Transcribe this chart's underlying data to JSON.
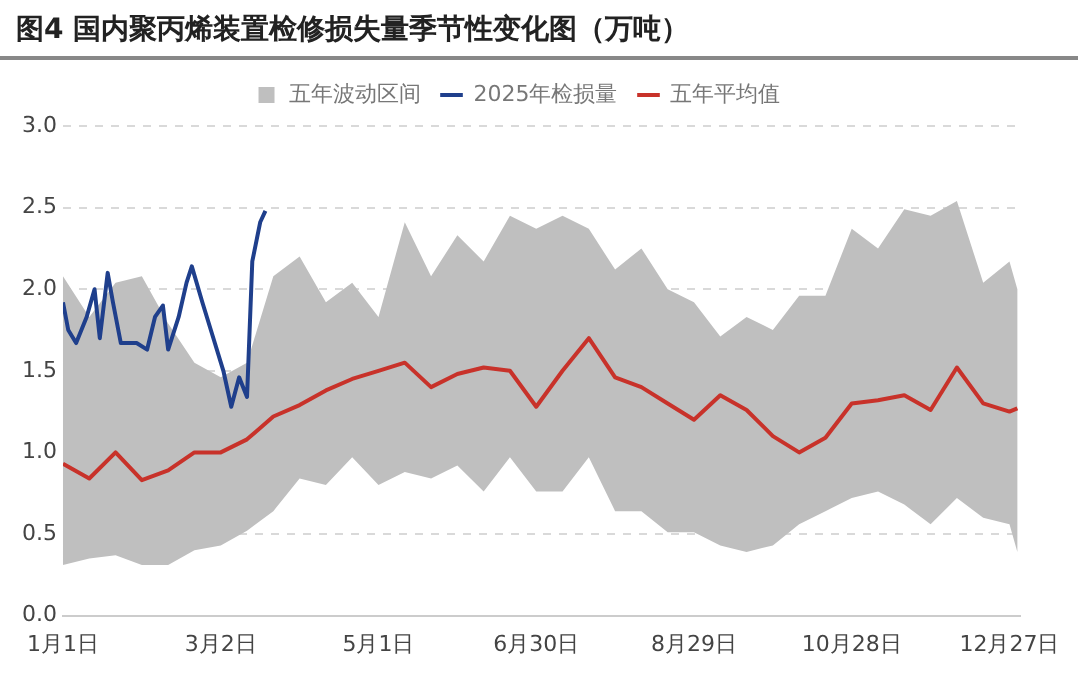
{
  "chart_data": {
    "type": "line",
    "title": "图4 国内聚丙烯装置检修损失量季节性变化图（万吨）",
    "xlim": [
      "--01-01",
      "--12-31"
    ],
    "xticks": [
      {
        "value": "--01-01",
        "label": "1月1日"
      },
      {
        "value": "--03-02",
        "label": "3月2日"
      },
      {
        "value": "--05-01",
        "label": "5月1日"
      },
      {
        "value": "--06-30",
        "label": "6月30日"
      },
      {
        "value": "--08-29",
        "label": "8月29日"
      },
      {
        "value": "--10-28",
        "label": "10月28日"
      },
      {
        "value": "--12-27",
        "label": "12月27日"
      }
    ],
    "ylim": [
      0,
      3
    ],
    "yticks": [
      {
        "value": 0,
        "label": "0.0"
      },
      0.5,
      {
        "value": 1,
        "label": "1.0"
      },
      1.5,
      {
        "value": 2,
        "label": "2.0"
      },
      2.5,
      {
        "value": 3,
        "label": "3.0"
      }
    ],
    "grid": "y",
    "legend": "top",
    "series": [
      {
        "name": "五年波动区间",
        "type": "area",
        "color": "#bfbfbf"
      },
      {
        "name": "2025年检损量",
        "type": "line",
        "color": "#1f3f8c",
        "x": [
          "--01-01",
          "--01-03",
          "--01-06",
          "--01-10",
          "--01-13",
          "--01-15",
          "--01-18",
          "--01-20",
          "--01-23",
          "--01-29",
          "--02-02",
          "--02-05",
          "--02-08",
          "--02-10",
          "--02-14",
          "--02-17",
          "--02-19",
          "--02-23",
          "--02-27",
          "--03-03",
          "--03-06",
          "--03-09",
          "--03-12",
          "--03-14",
          "--03-17",
          "--03-19"
        ],
        "values": [
          1.92,
          1.75,
          1.67,
          1.83,
          2.0,
          1.7,
          2.1,
          1.92,
          1.67,
          1.67,
          1.63,
          1.83,
          1.9,
          1.63,
          1.83,
          2.04,
          2.14,
          1.92,
          1.71,
          1.5,
          1.28,
          1.46,
          1.34,
          2.17,
          2.41,
          2.48
        ]
      },
      {
        "name": "五年平均值",
        "type": "line",
        "color": "#c8322a",
        "x": [
          "--01-01",
          "--01-11",
          "--01-21",
          "--01-31",
          "--02-10",
          "--02-20",
          "--03-02",
          "--03-12",
          "--03-22",
          "--04-01",
          "--04-11",
          "--04-21",
          "--05-01",
          "--05-11",
          "--05-21",
          "--05-31",
          "--06-10",
          "--06-20",
          "--06-30",
          "--07-10",
          "--07-20",
          "--07-30",
          "--08-09",
          "--08-19",
          "--08-29",
          "--09-08",
          "--09-18",
          "--09-28",
          "--10-08",
          "--10-18",
          "--10-28",
          "--11-07",
          "--11-17",
          "--11-27",
          "--12-07",
          "--12-17",
          "--12-27",
          "--12-30"
        ],
        "values": [
          0.93,
          0.84,
          1.0,
          0.83,
          0.89,
          1.0,
          1.0,
          1.08,
          1.22,
          1.29,
          1.38,
          1.45,
          1.5,
          1.55,
          1.4,
          1.48,
          1.52,
          1.5,
          1.28,
          1.5,
          1.7,
          1.46,
          1.4,
          1.3,
          1.2,
          1.35,
          1.26,
          1.1,
          1.0,
          1.09,
          1.3,
          1.32,
          1.35,
          1.26,
          1.52,
          1.3,
          1.25,
          1.27
        ],
        "lower": [
          0.31,
          0.35,
          0.37,
          0.31,
          0.31,
          0.4,
          0.43,
          0.52,
          0.64,
          0.84,
          0.8,
          0.97,
          0.8,
          0.88,
          0.84,
          0.92,
          0.76,
          0.97,
          0.76,
          0.76,
          0.97,
          0.64,
          0.64,
          0.51,
          0.51,
          0.43,
          0.39,
          0.43,
          0.56,
          0.64,
          0.72,
          0.76,
          0.68,
          0.56,
          0.72,
          0.6,
          0.56,
          0.39
        ],
        "upper": [
          2.08,
          1.83,
          2.04,
          2.08,
          1.79,
          1.55,
          1.46,
          1.55,
          2.08,
          2.2,
          1.92,
          2.04,
          1.83,
          2.41,
          2.08,
          2.33,
          2.17,
          2.45,
          2.37,
          2.45,
          2.37,
          2.12,
          2.25,
          2.0,
          1.92,
          1.71,
          1.83,
          1.75,
          1.96,
          1.96,
          2.37,
          2.25,
          2.49,
          2.45,
          2.54,
          2.04,
          2.17,
          2.0
        ]
      }
    ]
  }
}
